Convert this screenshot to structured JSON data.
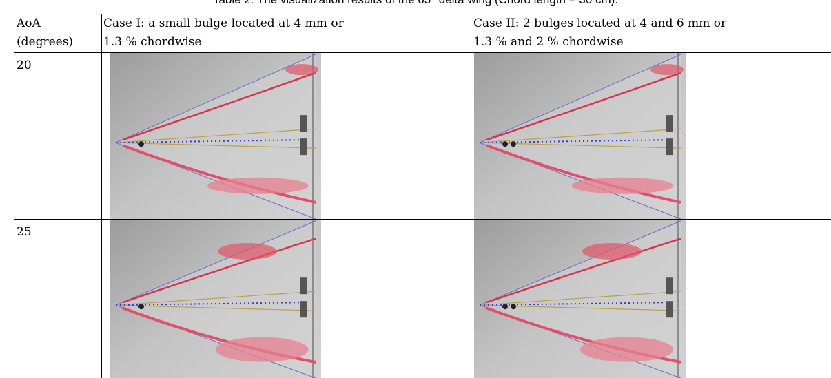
{
  "caption": "Table 2: The visualization results of the 65° delta wing (Chord length = 30 cm).",
  "table": {
    "header": [
      [
        "AoA",
        "(degrees)"
      ],
      [
        "Case I: a small bulge located at 4 mm or",
        "1.3 % chordwise"
      ],
      [
        "Case II: 2 bulges located at 4 and 6 mm or",
        "1.3 %  and 2 % chordwise"
      ]
    ],
    "rows": [
      [
        "20"
      ],
      [
        "25"
      ]
    ]
  }
}
